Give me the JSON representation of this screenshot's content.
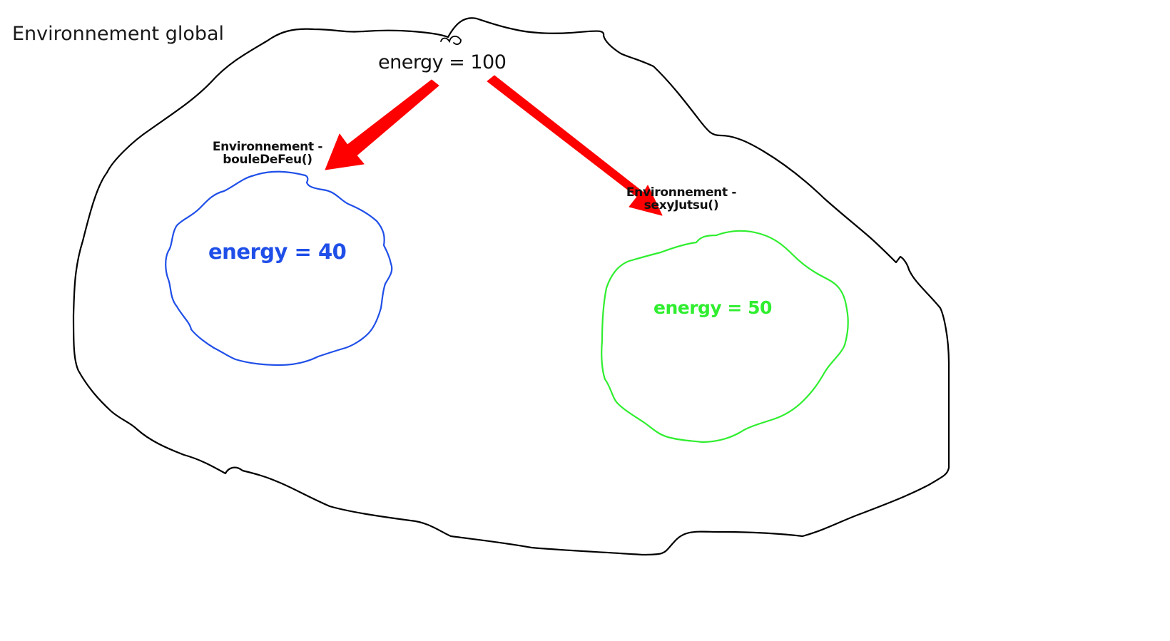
{
  "diagram": {
    "global_label": "Environnement global",
    "global_energy": "energy = 100",
    "scopes": [
      {
        "title_line1": "Environnement -",
        "title_line2": "bouleDeFeu()",
        "energy": "energy = 40",
        "color": "#1f4fe8"
      },
      {
        "title_line1": "Environnement -",
        "title_line2": "sexyJutsu()",
        "energy": "energy = 50",
        "color": "#2fee2f"
      }
    ],
    "outline_color": "#000000",
    "arrow_color": "#ff0000"
  }
}
